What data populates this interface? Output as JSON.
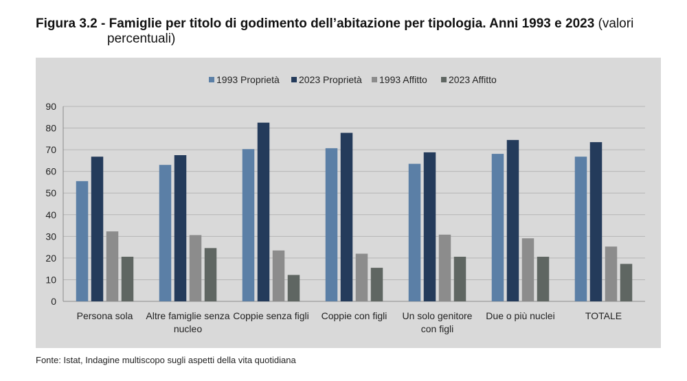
{
  "title": {
    "bold": "Figura 3.2 - Famiglie per titolo di godimento dell’abitazione per tipologia. Anni 1993 e 2023",
    "normal_1": "(valori",
    "normal_2": "percentuali)"
  },
  "source": "Fonte: Istat, Indagine multiscopo sugli aspetti della vita quotidiana",
  "chart_data": {
    "type": "bar",
    "title": "Famiglie per titolo di godimento dell’abitazione per tipologia. Anni 1993 e 2023",
    "xlabel": "",
    "ylabel": "",
    "ylim": [
      0,
      90
    ],
    "yticks": [
      0,
      10,
      20,
      30,
      40,
      50,
      60,
      70,
      80,
      90
    ],
    "grid": true,
    "legend_position": "top",
    "categories": [
      [
        "Persona sola"
      ],
      [
        "Altre famiglie senza",
        "nucleo"
      ],
      [
        "Coppie senza figli"
      ],
      [
        "Coppie con figli"
      ],
      [
        "Un solo genitore",
        "con figli"
      ],
      [
        "Due o più nuclei"
      ],
      [
        "TOTALE"
      ]
    ],
    "series": [
      {
        "name": "1993 Proprietà",
        "color": "#5b7fa6",
        "values": [
          55.5,
          63,
          70.3,
          70.7,
          63.5,
          68.1,
          66.8
        ]
      },
      {
        "name": "2023 Proprietà",
        "color": "#243b5b",
        "values": [
          66.8,
          67.5,
          82.5,
          77.8,
          68.8,
          74.5,
          73.5
        ]
      },
      {
        "name": "1993 Affitto",
        "color": "#8c8c8c",
        "values": [
          32.3,
          30.6,
          23.5,
          22.0,
          30.8,
          29.1,
          25.3
        ]
      },
      {
        "name": "2023 Affitto",
        "color": "#5f6662",
        "values": [
          20.6,
          24.6,
          12.2,
          15.5,
          20.6,
          20.6,
          17.3
        ]
      }
    ]
  }
}
